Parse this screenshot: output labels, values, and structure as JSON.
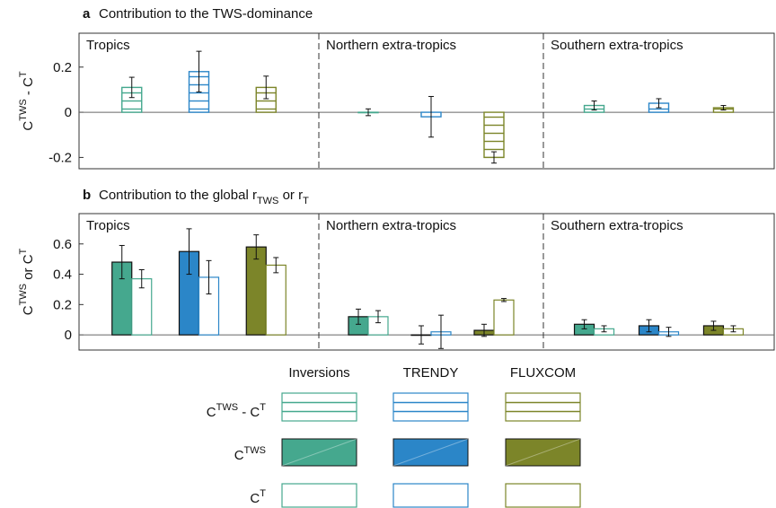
{
  "chart_data": [
    {
      "type": "bar",
      "label": "a",
      "title": "Contribution to the TWS-dominance",
      "ylabel": "C^{TWS} - C^{T}",
      "categories": [
        "Tropics",
        "Northern extra-tropics",
        "Southern extra-tropics"
      ],
      "series": [
        {
          "name": "Inversions",
          "color": "#45a88e",
          "values": [
            0.11,
            0.0,
            0.03
          ],
          "errors": [
            0.045,
            0.015,
            0.02
          ]
        },
        {
          "name": "TRENDY",
          "color": "#2b86c8",
          "values": [
            0.18,
            -0.02,
            0.04
          ],
          "errors": [
            0.09,
            0.09,
            0.02
          ]
        },
        {
          "name": "FLUXCOM",
          "color": "#7c8529",
          "values": [
            0.11,
            -0.2,
            0.02
          ],
          "errors": [
            0.05,
            0.025,
            0.01
          ]
        }
      ],
      "ylim": [
        -0.25,
        0.35
      ],
      "yticks": [
        -0.2,
        0,
        0.2
      ]
    },
    {
      "type": "grouped-bar",
      "label": "b",
      "title": "Contribution to the global r_{TWS} or r_{T}",
      "ylabel": "C^{TWS} or C^{T}",
      "categories": [
        "Tropics",
        "Northern extra-tropics",
        "Southern extra-tropics"
      ],
      "series": [
        {
          "name": "C^{TWS}",
          "filled": true,
          "values": [
            [
              0.48,
              0.55,
              0.58
            ],
            [
              0.12,
              0.0,
              0.03
            ],
            [
              0.07,
              0.06,
              0.06
            ]
          ],
          "errors": [
            [
              0.11,
              0.15,
              0.08
            ],
            [
              0.05,
              0.06,
              0.04
            ],
            [
              0.03,
              0.04,
              0.03
            ]
          ]
        },
        {
          "name": "C^{T}",
          "filled": false,
          "values": [
            [
              0.37,
              0.38,
              0.46
            ],
            [
              0.12,
              0.02,
              0.23
            ],
            [
              0.04,
              0.02,
              0.04
            ]
          ],
          "errors": [
            [
              0.06,
              0.11,
              0.05
            ],
            [
              0.04,
              0.11,
              0.01
            ],
            [
              0.02,
              0.03,
              0.02
            ]
          ]
        }
      ],
      "ylim": [
        -0.1,
        0.8
      ],
      "yticks": [
        0,
        0.2,
        0.4,
        0.6
      ]
    }
  ]
}
